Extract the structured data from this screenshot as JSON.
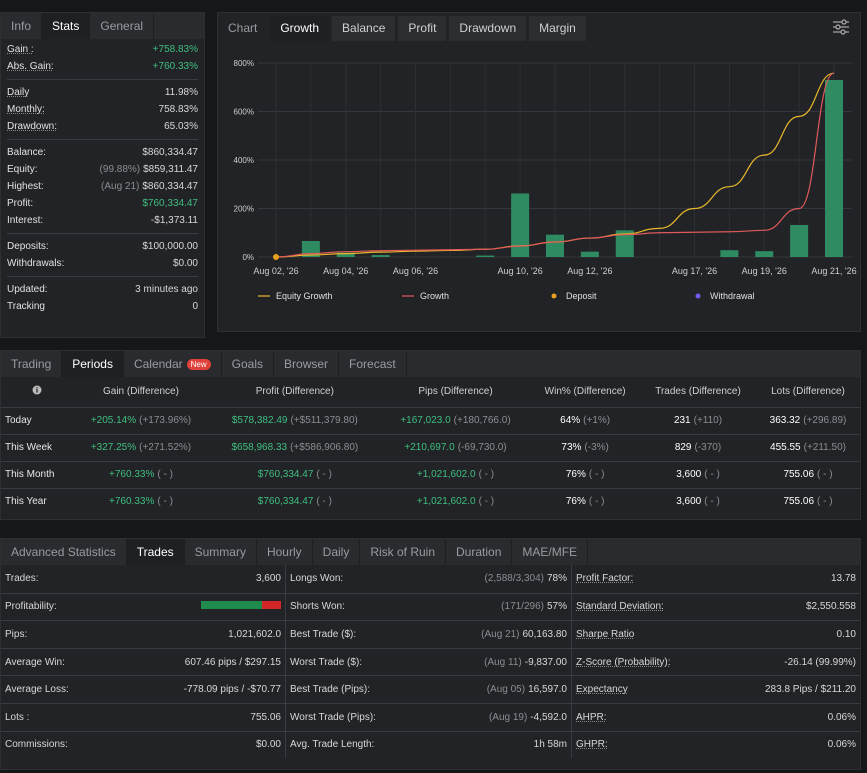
{
  "stats": {
    "tabs": [
      "Info",
      "Stats",
      "General"
    ],
    "active_tab": 1,
    "rows": [
      {
        "label": "Gain :",
        "value": "+758.83%",
        "green": true,
        "underline": true
      },
      {
        "label": "Abs. Gain:",
        "value": "+760.33%",
        "green": true,
        "underline": true
      },
      {
        "sep": true
      },
      {
        "label": "Daily",
        "value": "11.98%",
        "underline": true
      },
      {
        "label": "Monthly:",
        "value": "758.83%",
        "underline": true
      },
      {
        "label": "Drawdown:",
        "value": "65.03%",
        "underline": true
      },
      {
        "sep": true
      },
      {
        "label": "Balance:",
        "value": "$860,334.47"
      },
      {
        "label": "Equity:",
        "prefix": "(99.88%)",
        "value": "$859,311.47"
      },
      {
        "label": "Highest:",
        "prefix": "(Aug 21)",
        "value": "$860,334.47"
      },
      {
        "label": "Profit:",
        "value": "$760,334.47",
        "green": true
      },
      {
        "label": "Interest:",
        "value": "-$1,373.11"
      },
      {
        "sep": true
      },
      {
        "label": "Deposits:",
        "value": "$100,000.00"
      },
      {
        "label": "Withdrawals:",
        "value": "$0.00"
      },
      {
        "sep": true
      },
      {
        "label": "Updated:",
        "value": "3 minutes ago"
      },
      {
        "label": "Tracking",
        "value": "0"
      }
    ]
  },
  "chart_panel": {
    "tabs": [
      "Chart",
      "Growth",
      "Balance",
      "Profit",
      "Drawdown",
      "Margin"
    ],
    "active_tab": 1,
    "settings_icon": "sliders-icon"
  },
  "chart_data": {
    "type": "bar",
    "categories": [
      "Aug 02, '26",
      "Aug 03, '26",
      "Aug 04, '26",
      "Aug 05, '26",
      "Aug 06, '26",
      "Aug 07, '26",
      "Aug 09, '26",
      "Aug 10, '26",
      "Aug 11, '26",
      "Aug 12, '26",
      "Aug 13, '26",
      "Aug 14, '26",
      "Aug 17, '26",
      "Aug 18, '26",
      "Aug 19, '26",
      "Aug 20, '26",
      "Aug 21, '26"
    ],
    "x_ticks": [
      "Aug 02, '26",
      "Aug 04, '26",
      "Aug 06, '26",
      "Aug 10, '26",
      "Aug 12, '26",
      "Aug 17, '26",
      "Aug 19, '26",
      "Aug 21, '26"
    ],
    "bar_values": [
      0,
      66,
      18,
      8,
      0,
      0,
      6,
      262,
      92,
      22,
      110,
      0,
      0,
      28,
      24,
      132,
      730
    ],
    "series": [
      {
        "name": "Equity Growth",
        "color": "#e8b82a",
        "values": [
          0,
          8,
          14,
          20,
          24,
          27,
          32,
          46,
          62,
          78,
          95,
          118,
          200,
          290,
          420,
          580,
          758
        ]
      },
      {
        "name": "Growth",
        "color": "#e05a5a",
        "values": [
          0,
          14,
          22,
          26,
          28,
          30,
          32,
          45,
          62,
          78,
          92,
          100,
          102,
          104,
          110,
          200,
          758
        ]
      }
    ],
    "deposit_points": [
      {
        "x": "Aug 02, '26",
        "y": 0
      }
    ],
    "legend": [
      {
        "name": "Equity Growth",
        "kind": "line",
        "color": "#e8b82a"
      },
      {
        "name": "Growth",
        "kind": "line",
        "color": "#e05a5a"
      },
      {
        "name": "Deposit",
        "kind": "dot",
        "color": "#e8a020"
      },
      {
        "name": "Withdrawal",
        "kind": "dot",
        "color": "#6c5cf0"
      }
    ],
    "y_ticks": [
      "0%",
      "200%",
      "400%",
      "600%",
      "800%"
    ],
    "ylim": [
      0,
      800
    ],
    "bar_color": "#2e8b62",
    "grid": true,
    "legend_placement": "bottom"
  },
  "periods": {
    "tabs": [
      "Trading",
      "Periods",
      "Calendar",
      "Goals",
      "Browser",
      "Forecast"
    ],
    "active_tab": 1,
    "new_badge": "New",
    "info_icon": "info-icon",
    "headers": [
      "Gain (Difference)",
      "Profit (Difference)",
      "Pips (Difference)",
      "Win% (Difference)",
      "Trades (Difference)",
      "Lots (Difference)"
    ],
    "rows": [
      {
        "name": "Today",
        "cells": [
          [
            "+205.14%",
            "(+173.96%)"
          ],
          [
            "$578,382.49",
            "(+$511,379.80)"
          ],
          [
            "+167,023.0",
            "(+180,766.0)"
          ],
          [
            "64%",
            "(+1%)"
          ],
          [
            "231",
            "(+110)"
          ],
          [
            "363.32",
            "(+296.89)"
          ]
        ]
      },
      {
        "name": "This Week",
        "cells": [
          [
            "+327.25%",
            "(+271.52%)"
          ],
          [
            "$658,968.33",
            "(+$586,906.80)"
          ],
          [
            "+210,697.0",
            "(-69,730.0)"
          ],
          [
            "73%",
            "(-3%)"
          ],
          [
            "829",
            "(-370)"
          ],
          [
            "455.55",
            "(+211.50)"
          ]
        ]
      },
      {
        "name": "This Month",
        "cells": [
          [
            "+760.33%",
            "( - )"
          ],
          [
            "$760,334.47",
            "( - )"
          ],
          [
            "+1,021,602.0",
            "( - )"
          ],
          [
            "76%",
            "( - )"
          ],
          [
            "3,600",
            "( - )"
          ],
          [
            "755.06",
            "( - )"
          ]
        ]
      },
      {
        "name": "This Year",
        "cells": [
          [
            "+760.33%",
            "( - )"
          ],
          [
            "$760,334.47",
            "( - )"
          ],
          [
            "+1,021,602.0",
            "( - )"
          ],
          [
            "76%",
            "( - )"
          ],
          [
            "3,600",
            "( - )"
          ],
          [
            "755.06",
            "( - )"
          ]
        ]
      }
    ]
  },
  "advanced": {
    "tabs": [
      "Advanced Statistics",
      "Trades",
      "Summary",
      "Hourly",
      "Daily",
      "Risk of Ruin",
      "Duration",
      "MAE/MFE"
    ],
    "active_tab": 1,
    "col1": [
      {
        "label": "Trades:",
        "value": "3,600"
      },
      {
        "label": "Profitability:",
        "bar": true,
        "value": "",
        "win_fraction": 0.76
      },
      {
        "label": "Pips:",
        "value": "1,021,602.0"
      },
      {
        "label": "Average Win:",
        "value": "607.46 pips / $297.15"
      },
      {
        "label": "Average Loss:",
        "value": "-778.09 pips / -$70.77"
      },
      {
        "label": "Lots :",
        "value": "755.06"
      },
      {
        "label": "Commissions:",
        "value": "$0.00"
      }
    ],
    "col2": [
      {
        "label": "Longs Won:",
        "prefix": "(2,588/3,304)",
        "value": "78%"
      },
      {
        "label": "Shorts Won:",
        "prefix": "(171/296)",
        "value": "57%"
      },
      {
        "label": "Best Trade ($):",
        "prefix": "(Aug 21)",
        "value": "60,163.80"
      },
      {
        "label": "Worst Trade ($):",
        "prefix": "(Aug 11)",
        "value": "-9,837.00"
      },
      {
        "label": "Best Trade (Pips):",
        "prefix": "(Aug 05)",
        "value": "16,597.0"
      },
      {
        "label": "Worst Trade (Pips):",
        "prefix": "(Aug 19)",
        "value": "-4,592.0"
      },
      {
        "label": "Avg. Trade Length:",
        "value": "1h 58m"
      }
    ],
    "col3": [
      {
        "label": "Profit Factor:",
        "value": "13.78"
      },
      {
        "label": "Standard Deviation:",
        "value": "$2,550.558"
      },
      {
        "label": "Sharpe Ratio",
        "value": "0.10"
      },
      {
        "label": "Z-Score (Probability):",
        "value": "-26.14 (99.99%)"
      },
      {
        "label": "Expectancy",
        "value": "283.8 Pips / $211.20"
      },
      {
        "label": "AHPR:",
        "value": "0.06%"
      },
      {
        "label": "GHPR:",
        "value": "0.06%"
      }
    ]
  }
}
